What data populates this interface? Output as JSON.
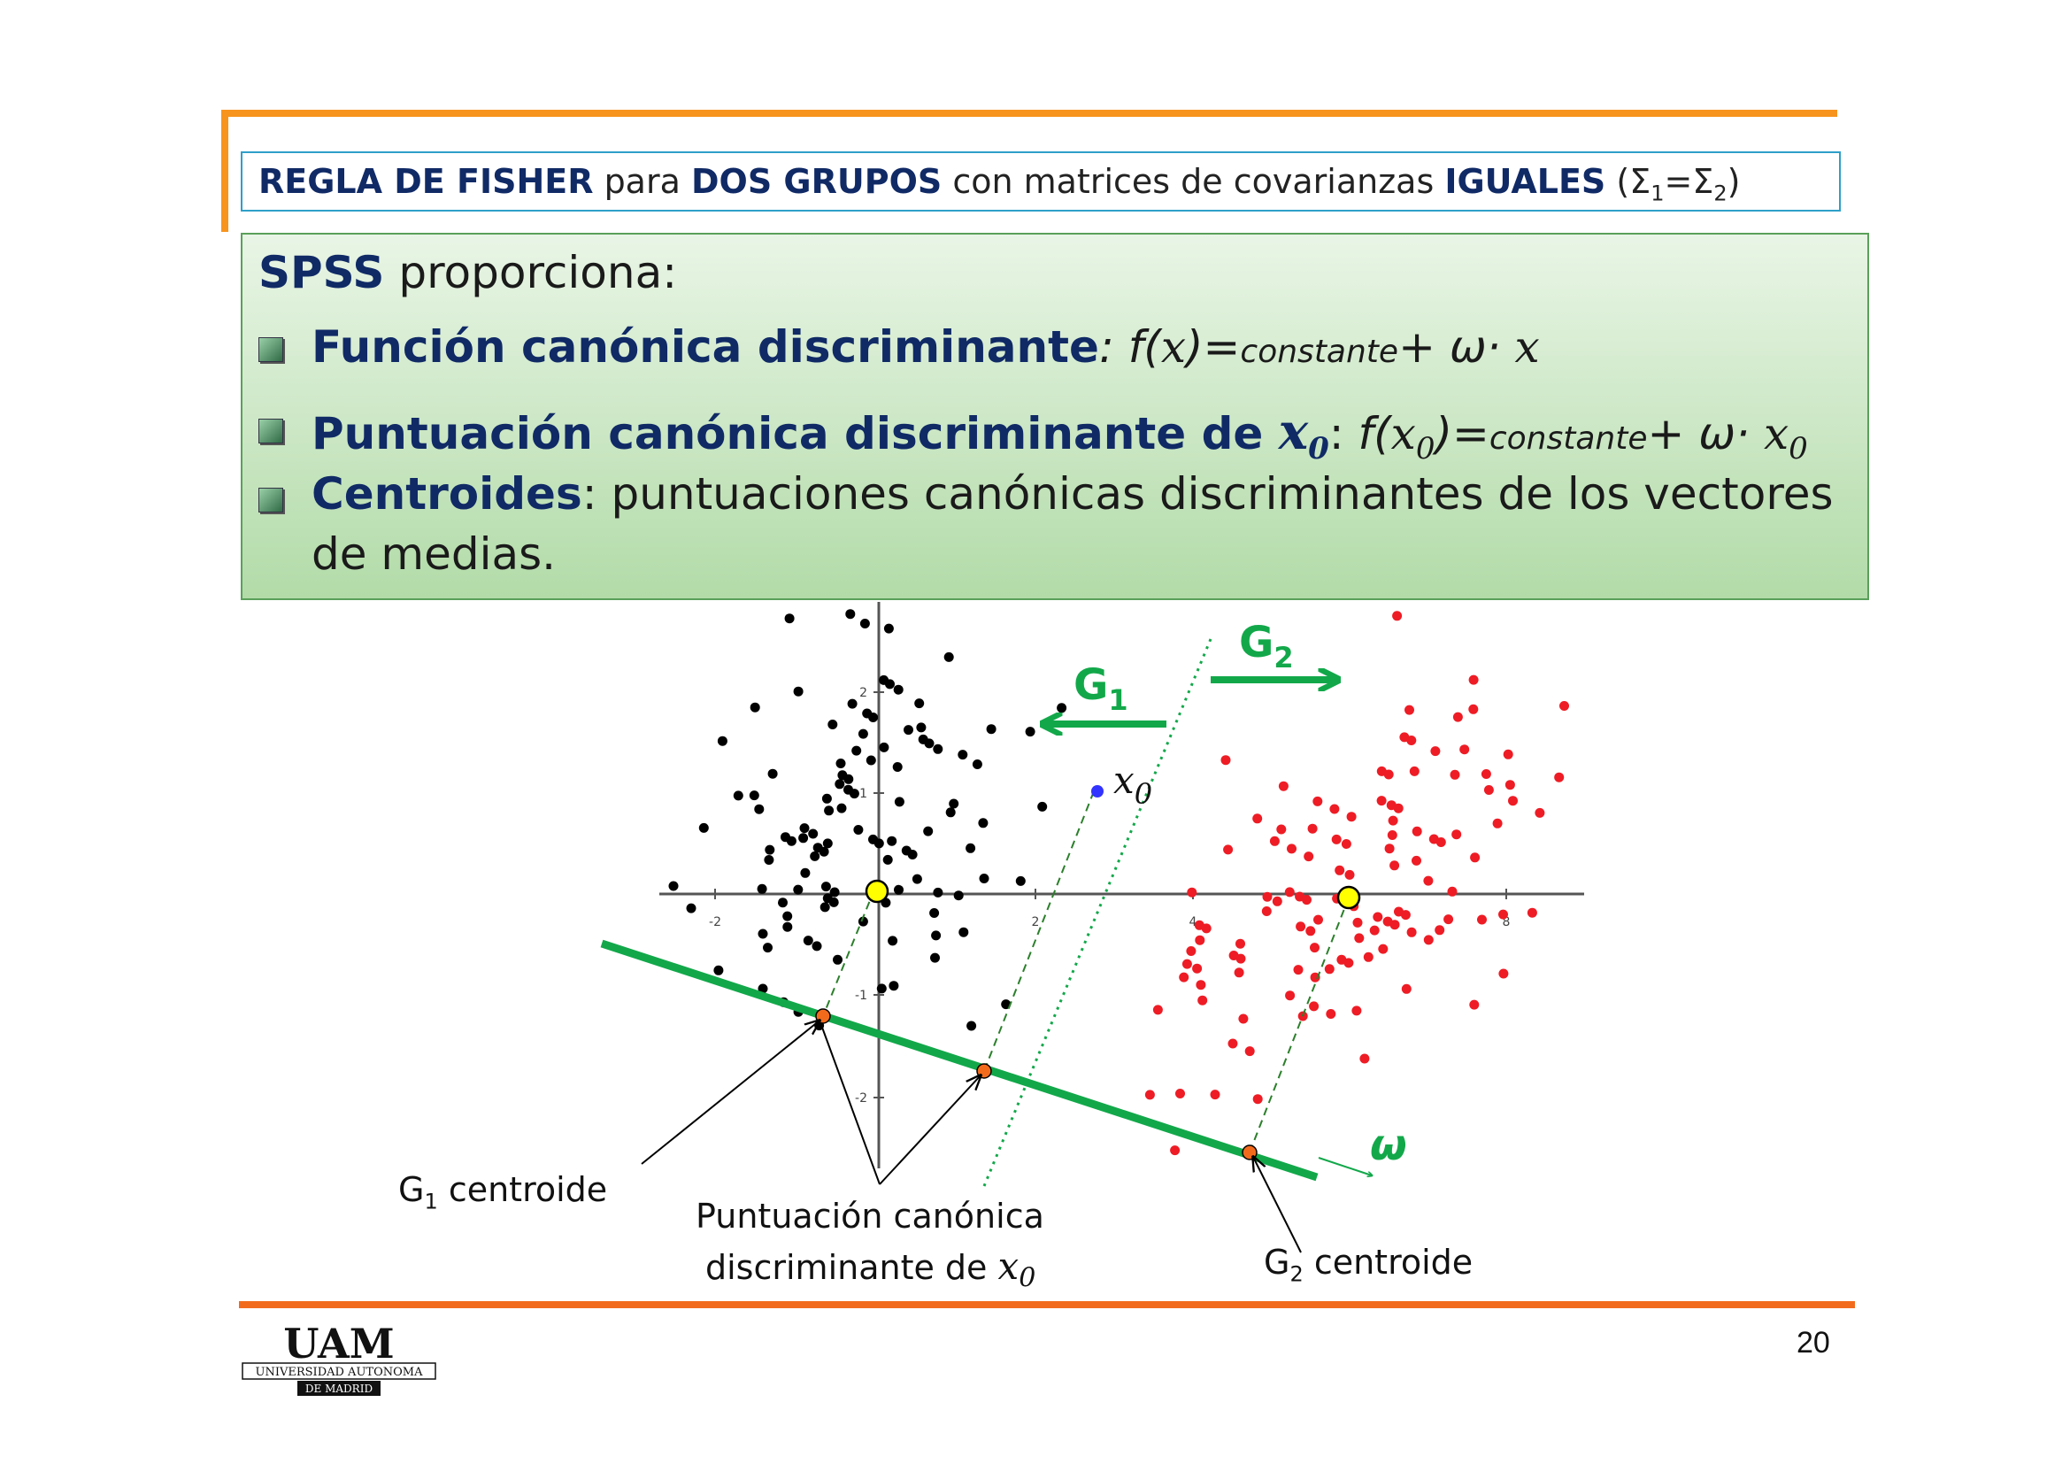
{
  "header": {
    "t1": "REGLA DE FISHER",
    "t2": " para ",
    "t3": "DOS GRUPOS",
    "t4": " con matrices de covarianzas ",
    "t5": "IGUALES",
    "t6": " (Σ",
    "t7": "1",
    "t8": "=Σ",
    "t9": "2",
    "t10": ")"
  },
  "box": {
    "intro_bold": "SPSS",
    "intro_rest": " proporciona:",
    "b1_bold": "Función canónica discriminante",
    "b1_colon": ": ",
    "b1_f": "f(",
    "b1_x": "x",
    "b1_eq": ")=",
    "b1_const": "constante",
    "b1_plus": "+ ω· ",
    "b1_x2": "x",
    "b2_bold": "Puntuación canónica discriminante de ",
    "b2_x": "x",
    "b2_sub": "0",
    "b2_colon": ": ",
    "b2_f": "f(",
    "b2_x2": "x",
    "b2_sub2": "0",
    "b2_eq": ")=",
    "b2_const": "constante",
    "b2_plus": "+ ω· ",
    "b2_x3": "x",
    "b2_sub3": "0",
    "b3_bold": "Centroides",
    "b3_rest": ": puntuaciones canónicas discriminantes de los vectores",
    "b3_line2": "de medias."
  },
  "diagram": {
    "g1_label": "G",
    "g1_sub": "1",
    "g2_label": "G",
    "g2_sub": "2",
    "x0_label": "x",
    "x0_sub": "0",
    "omega_label": "ω",
    "x_ticks": [
      "-2",
      "2",
      "4",
      "8"
    ],
    "y_ticks": [
      "2",
      "1",
      "-1",
      "-2"
    ],
    "colors": {
      "green": "#12a84a",
      "g1_points": "#000000",
      "g2_points": "#ee1c25",
      "x0_point": "#3333ff",
      "centroid": "#ffff00",
      "projection": "#f26b1d"
    }
  },
  "labels": {
    "g1c_G": "G",
    "g1c_sub": "1",
    "g1c_text": " centroide",
    "score_line1": "Puntuación canónica",
    "score_line2": "discriminante de ",
    "score_x": "x",
    "score_sub": "0",
    "g2c_G": "G",
    "g2c_sub": "2",
    "g2c_text": " centroide"
  },
  "footer": {
    "page_number": "20",
    "logo_main": "UAM",
    "logo_line1": "UNIVERSIDAD AUTONOMA",
    "logo_line2": "DE MADRID"
  }
}
